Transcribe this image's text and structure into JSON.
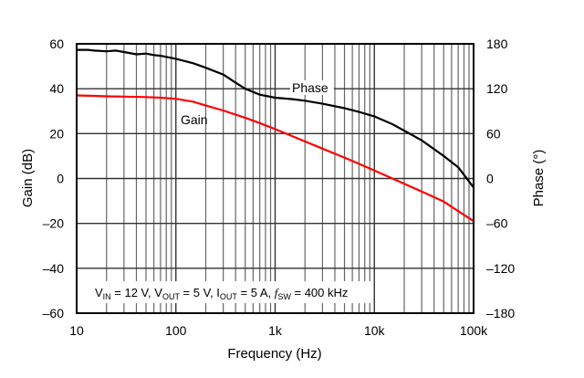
{
  "chart_data": {
    "type": "line",
    "title": "",
    "xlabel": "Frequency (Hz)",
    "ylabel": "Gain (dB)",
    "y2label": "Phase (°)",
    "xscale": "log",
    "xlim": [
      10,
      100000
    ],
    "ylim": [
      -60,
      60
    ],
    "y2lim": [
      -180,
      180
    ],
    "grid": true,
    "x_ticks": [
      10,
      100,
      1000,
      10000,
      100000
    ],
    "x_tick_labels": [
      "10",
      "100",
      "1k",
      "10k",
      "100k"
    ],
    "y_ticks": [
      60,
      40,
      20,
      0,
      -20,
      -40,
      -60
    ],
    "y_tick_labels": [
      "60",
      "40",
      "20",
      "0",
      "–20",
      "–40",
      "–60"
    ],
    "y2_ticks": [
      180,
      120,
      60,
      0,
      -60,
      -120,
      -180
    ],
    "y2_tick_labels": [
      "180",
      "120",
      "60",
      "0",
      "–60",
      "–120",
      "–180"
    ],
    "colors": {
      "gain": "#ff0000",
      "phase": "#000000",
      "grid": "#555555",
      "frame": "#000000"
    },
    "series": [
      {
        "name": "Gain",
        "axis": "left",
        "x": [
          10,
          15,
          20,
          30,
          50,
          70,
          100,
          150,
          200,
          300,
          500,
          700,
          1000,
          2000,
          3000,
          5000,
          10000,
          20000,
          30000,
          50000,
          100000
        ],
        "values": [
          37,
          36.8,
          36.6,
          36.5,
          36.3,
          36,
          35.5,
          34.2,
          32.5,
          30.3,
          27,
          24.7,
          22,
          16.5,
          13.3,
          9.3,
          3.6,
          -2.3,
          -5.8,
          -10.3,
          -19
        ]
      },
      {
        "name": "Phase",
        "axis": "right",
        "x": [
          10,
          13,
          15,
          20,
          25,
          30,
          40,
          50,
          60,
          70,
          100,
          150,
          200,
          300,
          400,
          500,
          700,
          1000,
          1500,
          2000,
          3000,
          5000,
          7000,
          10000,
          15000,
          20000,
          30000,
          50000,
          70000,
          100000
        ],
        "values": [
          172,
          172,
          171,
          170,
          171,
          169,
          166,
          167,
          165,
          164,
          160,
          154,
          148,
          139,
          128,
          120,
          112,
          108,
          106,
          104,
          100,
          94,
          89,
          83,
          73,
          64,
          51,
          30,
          15,
          -12
        ]
      }
    ],
    "annotations": {
      "gain_label": "Gain",
      "phase_label": "Phase",
      "conditions": {
        "vin_sym": "V",
        "vin_sub": "IN",
        "vin_val": " = 12 V, ",
        "vout_sym": "V",
        "vout_sub": "OUT",
        "vout_val": " = 5 V, ",
        "iout_sym": "I",
        "iout_sub": "OUT",
        "iout_val": " = 5 A, ",
        "fsw_sym": "f",
        "fsw_sub": "SW",
        "fsw_val": " = 400 kHz"
      }
    }
  }
}
